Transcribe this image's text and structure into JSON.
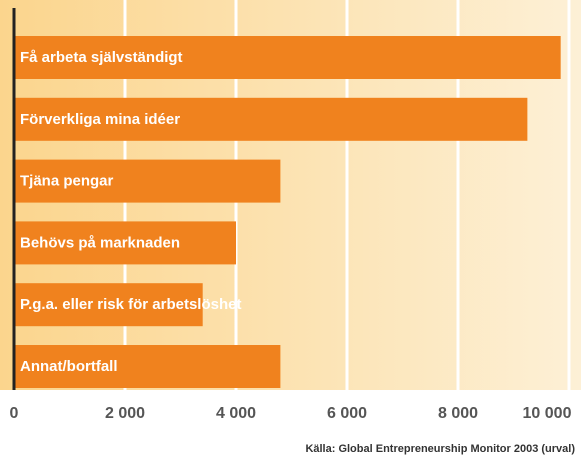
{
  "chart_data": {
    "type": "bar",
    "orientation": "horizontal",
    "categories": [
      "Få arbeta självständigt",
      "Förverkliga mina idéer",
      "Tjäna pengar",
      "Behövs på marknaden",
      "P.g.a. eller risk för arbetslöshet",
      "Annat/bortfall"
    ],
    "values": [
      9850,
      9250,
      4800,
      4000,
      3400,
      4800
    ],
    "color": "#f0821e",
    "xlim": [
      0,
      10000
    ],
    "xticks": [
      0,
      {
        "value": 2000,
        "label": "2 000"
      },
      {
        "value": 4000,
        "label": "4 000"
      },
      {
        "value": 6000,
        "label": "6 000"
      },
      {
        "value": 8000,
        "label": "8 000"
      },
      {
        "value": 10000,
        "label": "10 000"
      }
    ],
    "grid": true,
    "source": "Källa: Global Entrepreneurship Monitor 2003 (urval)"
  }
}
